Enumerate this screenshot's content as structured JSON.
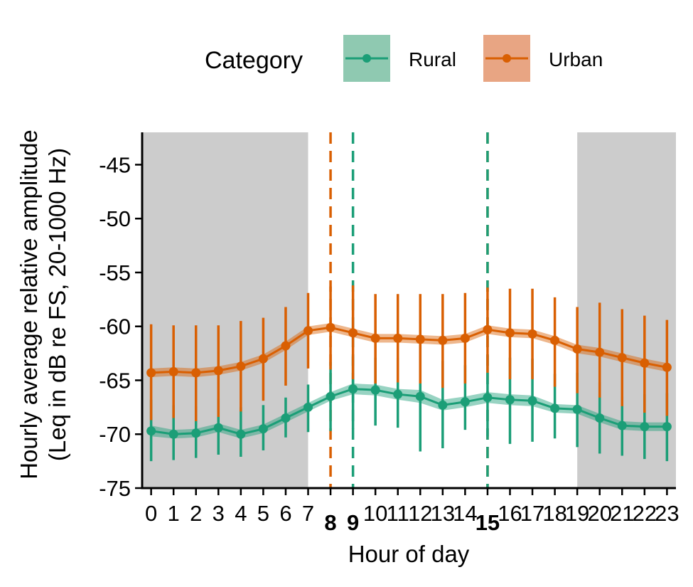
{
  "chart_data": {
    "type": "line",
    "xlabel": "Hour of day",
    "ylabel_line1": "Hourly average relative amplitude",
    "ylabel_line2": "(Leq in dB re FS, 20-1000 Hz)",
    "legend": {
      "title": "Category",
      "placement": "top"
    },
    "xlim": [
      -0.4,
      23.4
    ],
    "ylim": [
      -75,
      -42
    ],
    "y_ticks": [
      -45,
      -50,
      -55,
      -60,
      -65,
      -70,
      -75
    ],
    "x_ticks": [
      0,
      1,
      2,
      3,
      4,
      5,
      6,
      7,
      8,
      9,
      10,
      11,
      12,
      13,
      14,
      15,
      16,
      17,
      18,
      19,
      20,
      21,
      22,
      23
    ],
    "x_ticks_bold": [
      8,
      9,
      15
    ],
    "night_shading": [
      [
        -0.4,
        7
      ],
      [
        19,
        23.4
      ]
    ],
    "colors": {
      "Rural": "#1b9e77",
      "Urban": "#d95f02",
      "Rural_fill": "#8fc9b1",
      "Urban_fill": "#e8a583",
      "shade": "#cccccc"
    },
    "series": [
      {
        "name": "Rural",
        "x": [
          0,
          1,
          2,
          3,
          4,
          5,
          6,
          7,
          8,
          9,
          10,
          11,
          12,
          13,
          14,
          15,
          16,
          17,
          18,
          19,
          20,
          21,
          22,
          23
        ],
        "mean": [
          -69.7,
          -70.0,
          -69.9,
          -69.4,
          -70.0,
          -69.5,
          -68.5,
          -67.5,
          -66.5,
          -65.8,
          -65.9,
          -66.3,
          -66.5,
          -67.3,
          -67.0,
          -66.6,
          -66.8,
          -66.9,
          -67.6,
          -67.7,
          -68.5,
          -69.2,
          -69.3,
          -69.3
        ],
        "ci_low": [
          -70.2,
          -70.4,
          -70.3,
          -69.8,
          -70.4,
          -69.9,
          -68.9,
          -67.9,
          -66.9,
          -66.3,
          -66.4,
          -66.8,
          -67.1,
          -67.8,
          -67.5,
          -67.1,
          -67.3,
          -67.4,
          -68.0,
          -68.1,
          -68.9,
          -69.6,
          -69.7,
          -69.7
        ],
        "ci_high": [
          -69.2,
          -69.6,
          -69.5,
          -69.0,
          -69.6,
          -69.1,
          -68.1,
          -67.1,
          -66.1,
          -65.3,
          -65.4,
          -65.8,
          -65.9,
          -66.8,
          -66.5,
          -66.1,
          -66.3,
          -66.4,
          -67.2,
          -67.3,
          -68.1,
          -68.8,
          -68.9,
          -68.9
        ],
        "err_low": [
          -72.5,
          -72.4,
          -72.2,
          -71.9,
          -72.1,
          -71.5,
          -70.3,
          -69.8,
          -69.7,
          -69.5,
          -69.2,
          -69.4,
          -71.6,
          -71.3,
          -69.6,
          -70.2,
          -70.9,
          -70.7,
          -70.4,
          -71.2,
          -71.8,
          -72.0,
          -72.3,
          -72.5
        ],
        "err_high": [
          -66.8,
          -67.3,
          -67.4,
          -66.7,
          -67.5,
          -67.3,
          -66.6,
          -65.4,
          -63.3,
          -62.8,
          -62.9,
          -62.9,
          -61.3,
          -63.2,
          -63.6,
          -62.7,
          -62.9,
          -63.0,
          -64.4,
          -64.3,
          -65.2,
          -66.5,
          -66.3,
          -66.2
        ]
      },
      {
        "name": "Urban",
        "x": [
          0,
          1,
          2,
          3,
          4,
          5,
          6,
          7,
          8,
          9,
          10,
          11,
          12,
          13,
          14,
          15,
          16,
          17,
          18,
          19,
          20,
          21,
          22,
          23
        ],
        "mean": [
          -64.3,
          -64.2,
          -64.3,
          -64.1,
          -63.7,
          -63.0,
          -61.8,
          -60.4,
          -60.1,
          -60.6,
          -61.1,
          -61.1,
          -61.2,
          -61.3,
          -61.1,
          -60.3,
          -60.6,
          -60.7,
          -61.3,
          -62.1,
          -62.4,
          -62.9,
          -63.4,
          -63.8
        ],
        "ci_low": [
          -64.7,
          -64.6,
          -64.7,
          -64.5,
          -64.1,
          -63.4,
          -62.2,
          -60.8,
          -60.5,
          -61.0,
          -61.5,
          -61.5,
          -61.6,
          -61.7,
          -61.5,
          -60.7,
          -61.0,
          -61.1,
          -61.7,
          -62.5,
          -62.8,
          -63.3,
          -63.8,
          -64.2
        ],
        "ci_high": [
          -63.9,
          -63.8,
          -63.9,
          -63.7,
          -63.3,
          -62.6,
          -61.4,
          -60.0,
          -59.7,
          -60.2,
          -60.7,
          -60.7,
          -60.8,
          -60.9,
          -60.7,
          -59.9,
          -60.2,
          -60.3,
          -60.9,
          -61.7,
          -62.0,
          -62.5,
          -63.0,
          -63.4
        ],
        "err_low": [
          -68.7,
          -68.5,
          -68.8,
          -68.4,
          -67.9,
          -66.9,
          -65.5,
          -63.9,
          -64.0,
          -64.9,
          -65.3,
          -65.2,
          -65.3,
          -65.7,
          -65.3,
          -64.3,
          -64.9,
          -64.9,
          -65.6,
          -66.2,
          -66.6,
          -67.4,
          -68.0,
          -68.3
        ],
        "err_high": [
          -59.8,
          -59.9,
          -59.9,
          -59.9,
          -59.5,
          -59.2,
          -58.2,
          -56.9,
          -56.3,
          -56.2,
          -57.0,
          -57.0,
          -57.0,
          -57.0,
          -56.9,
          -56.4,
          -56.5,
          -56.5,
          -57.3,
          -58.2,
          -57.8,
          -58.4,
          -59.0,
          -59.4
        ]
      }
    ],
    "vlines": [
      {
        "series": "Urban",
        "x": 8
      },
      {
        "series": "Rural",
        "x": 9
      },
      {
        "series": "Urban",
        "x": 15
      },
      {
        "series": "Rural",
        "x": 15
      }
    ]
  }
}
